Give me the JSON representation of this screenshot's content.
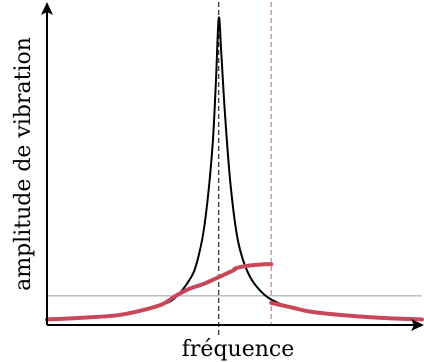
{
  "chart_data": {
    "type": "line",
    "xlabel": "fréquence",
    "ylabel": "amplitude de vibration",
    "xlim": [
      0,
      1
    ],
    "ylim": [
      0,
      1
    ],
    "grid": false,
    "colors": {
      "resonance": "#000000",
      "hysteresis": "#c8485a",
      "reference": "#b8b8b8",
      "axis": "#000000"
    },
    "reference_line_y": 0.095,
    "resonance_peak_x": 0.458,
    "jump_x": 0.598,
    "series": [
      {
        "key": "resonance",
        "x": [
          0.0,
          0.1,
          0.2,
          0.3,
          0.34,
          0.38,
          0.4,
          0.42,
          0.44,
          0.45,
          0.458,
          0.465,
          0.475,
          0.49,
          0.51,
          0.54,
          0.58,
          0.62,
          0.66,
          0.7,
          0.78,
          0.88,
          1.0
        ],
        "y": [
          0.018,
          0.024,
          0.034,
          0.064,
          0.087,
          0.147,
          0.205,
          0.325,
          0.56,
          0.78,
          1.0,
          0.88,
          0.68,
          0.45,
          0.27,
          0.16,
          0.098,
          0.07,
          0.055,
          0.044,
          0.033,
          0.024,
          0.018
        ]
      },
      {
        "key": "hysteresis-upper",
        "x": [
          0.0,
          0.1,
          0.2,
          0.3,
          0.34,
          0.38,
          0.42,
          0.46,
          0.5,
          0.5,
          0.52,
          0.55,
          0.58,
          0.598
        ],
        "y": [
          0.018,
          0.024,
          0.034,
          0.064,
          0.093,
          0.118,
          0.135,
          0.157,
          0.18,
          0.183,
          0.19,
          0.195,
          0.198,
          0.198
        ]
      },
      {
        "key": "hysteresis-lower",
        "x": [
          0.598,
          0.62,
          0.66,
          0.7,
          0.78,
          0.88,
          1.0
        ],
        "y": [
          0.072,
          0.066,
          0.055,
          0.044,
          0.033,
          0.024,
          0.018
        ]
      }
    ]
  }
}
